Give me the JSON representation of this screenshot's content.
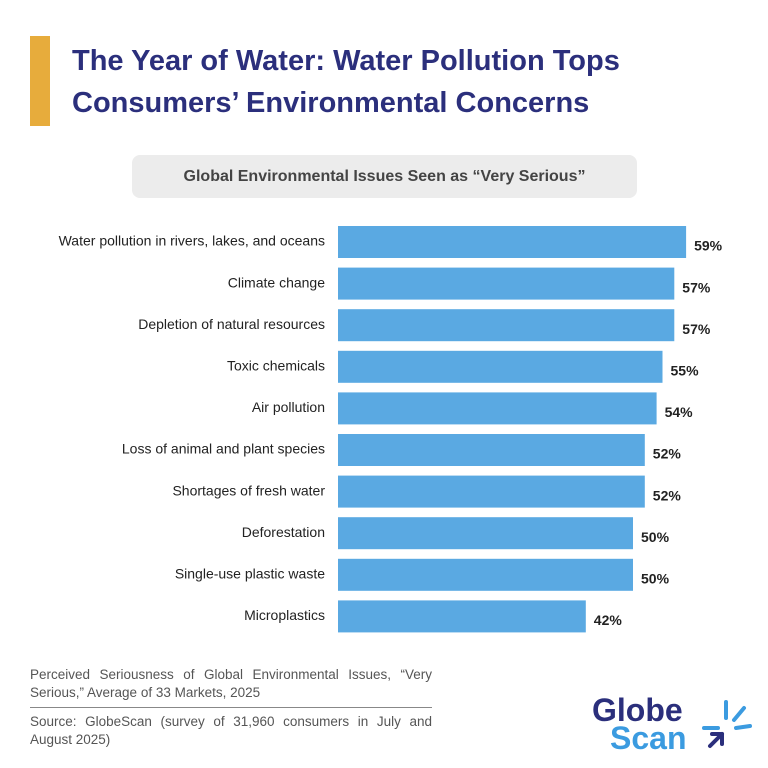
{
  "chart_data": {
    "type": "bar",
    "orientation": "horizontal",
    "title": "The Year of Water: Water Pollution Tops Consumers’ Environmental Concerns",
    "subtitle": "Global Environmental Issues Seen as “Very Serious”",
    "categories": [
      "Water pollution in rivers, lakes, and oceans",
      "Climate change",
      "Depletion of natural resources",
      "Toxic chemicals",
      "Air pollution",
      "Loss of animal and plant species",
      "Shortages of fresh water",
      "Deforestation",
      "Single-use plastic waste",
      "Microplastics"
    ],
    "values": [
      59,
      57,
      57,
      55,
      54,
      52,
      52,
      50,
      50,
      42
    ],
    "value_labels": [
      "59%",
      "57%",
      "57%",
      "55%",
      "54%",
      "52%",
      "52%",
      "50%",
      "50%",
      "42%"
    ],
    "color": "#5aa9e2",
    "note": "Perceived Seriousness of Global Environmental Issues, “Very Serious,” Average of 33 Markets, 2025",
    "source": "Source: GlobeScan (survey of 31,960 consumers in July and August 2025)"
  },
  "logo": {
    "line1": "Globe",
    "line2": "Scan"
  }
}
